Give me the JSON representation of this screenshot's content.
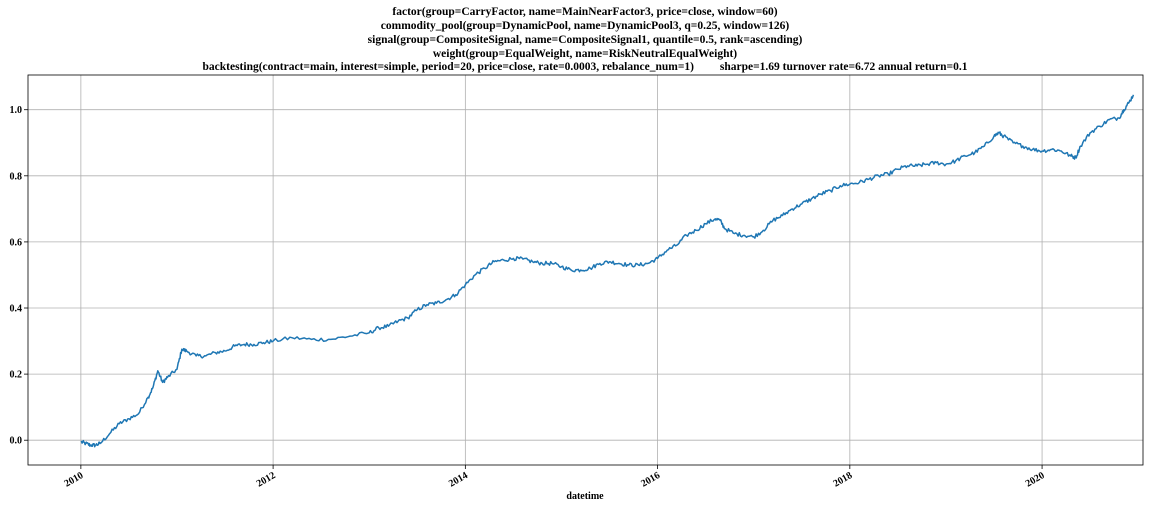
{
  "colors": {
    "line": "#1f77b4",
    "grid": "#b0b0b0",
    "axis": "#000000",
    "background": "#ffffff"
  },
  "chart_data": {
    "type": "line",
    "title_lines": [
      "factor(group=CarryFactor, name=MainNearFactor3, price=close, window=60)",
      "commodity_pool(group=DynamicPool, name=DynamicPool3, q=0.25, window=126)",
      "signal(group=CompositeSignal, name=CompositeSignal1, quantile=0.5, rank=ascending)",
      "weight(group=EqualWeight, name=RiskNeutralEqualWeight)",
      "backtesting(contract=main, interest=simple, period=20, price=close, rate=0.0003, rebalance_num=1)         sharpe=1.69 turnover rate=6.72 annual return=0.1"
    ],
    "xlabel": "datetime",
    "ylabel": "",
    "xlim": [
      2009.45,
      2021.05
    ],
    "ylim": [
      -0.075,
      1.105
    ],
    "grid": true,
    "legend": "none",
    "x_ticks": [
      2010,
      2012,
      2014,
      2016,
      2018,
      2020
    ],
    "x_tick_labels": [
      "2010",
      "2012",
      "2014",
      "2016",
      "2018",
      "2020"
    ],
    "y_ticks": [
      0.0,
      0.2,
      0.4,
      0.6,
      0.8,
      1.0
    ],
    "y_tick_labels": [
      "0.0",
      "0.2",
      "0.4",
      "0.6",
      "0.8",
      "1.0"
    ],
    "series": [
      {
        "x": [
          2010.0,
          2010.05,
          2010.1,
          2010.15,
          2010.2,
          2010.3,
          2010.4,
          2010.5,
          2010.6,
          2010.7,
          2010.75,
          2010.8,
          2010.85,
          2010.9,
          2011.0,
          2011.05,
          2011.1,
          2011.2,
          2011.3,
          2011.4,
          2011.5,
          2011.6,
          2011.7,
          2011.8,
          2011.9,
          2012.0,
          2012.2,
          2012.4,
          2012.6,
          2012.8,
          2013.0,
          2013.1,
          2013.2,
          2013.3,
          2013.4,
          2013.5,
          2013.6,
          2013.7,
          2013.8,
          2013.9,
          2014.0,
          2014.1,
          2014.2,
          2014.3,
          2014.4,
          2014.5,
          2014.6,
          2014.7,
          2014.8,
          2014.9,
          2015.0,
          2015.1,
          2015.2,
          2015.3,
          2015.4,
          2015.5,
          2015.6,
          2015.7,
          2015.8,
          2015.9,
          2016.0,
          2016.1,
          2016.2,
          2016.3,
          2016.4,
          2016.5,
          2016.6,
          2016.65,
          2016.7,
          2016.8,
          2016.9,
          2017.0,
          2017.1,
          2017.2,
          2017.3,
          2017.4,
          2017.5,
          2017.6,
          2017.7,
          2017.8,
          2017.9,
          2018.0,
          2018.1,
          2018.2,
          2018.3,
          2018.4,
          2018.5,
          2018.6,
          2018.7,
          2018.8,
          2018.9,
          2019.0,
          2019.1,
          2019.2,
          2019.3,
          2019.4,
          2019.5,
          2019.55,
          2019.6,
          2019.7,
          2019.8,
          2019.9,
          2020.0,
          2020.1,
          2020.2,
          2020.3,
          2020.35,
          2020.4,
          2020.5,
          2020.6,
          2020.7,
          2020.8,
          2020.85,
          2020.9,
          2020.95
        ],
        "values": [
          -0.005,
          -0.01,
          -0.015,
          -0.015,
          -0.01,
          0.02,
          0.05,
          0.065,
          0.08,
          0.13,
          0.16,
          0.21,
          0.175,
          0.19,
          0.215,
          0.275,
          0.27,
          0.255,
          0.255,
          0.265,
          0.27,
          0.285,
          0.29,
          0.29,
          0.295,
          0.3,
          0.31,
          0.305,
          0.305,
          0.315,
          0.325,
          0.34,
          0.345,
          0.36,
          0.37,
          0.395,
          0.41,
          0.415,
          0.425,
          0.44,
          0.47,
          0.5,
          0.52,
          0.54,
          0.545,
          0.55,
          0.548,
          0.54,
          0.535,
          0.535,
          0.525,
          0.515,
          0.515,
          0.52,
          0.535,
          0.54,
          0.535,
          0.53,
          0.53,
          0.535,
          0.55,
          0.575,
          0.59,
          0.62,
          0.635,
          0.655,
          0.67,
          0.665,
          0.64,
          0.625,
          0.62,
          0.615,
          0.635,
          0.665,
          0.68,
          0.7,
          0.715,
          0.73,
          0.745,
          0.755,
          0.77,
          0.775,
          0.78,
          0.79,
          0.8,
          0.805,
          0.82,
          0.83,
          0.83,
          0.835,
          0.84,
          0.835,
          0.845,
          0.86,
          0.87,
          0.89,
          0.92,
          0.93,
          0.92,
          0.9,
          0.89,
          0.88,
          0.875,
          0.88,
          0.875,
          0.86,
          0.855,
          0.89,
          0.93,
          0.95,
          0.97,
          0.975,
          1.0,
          1.02,
          1.045
        ]
      }
    ]
  }
}
